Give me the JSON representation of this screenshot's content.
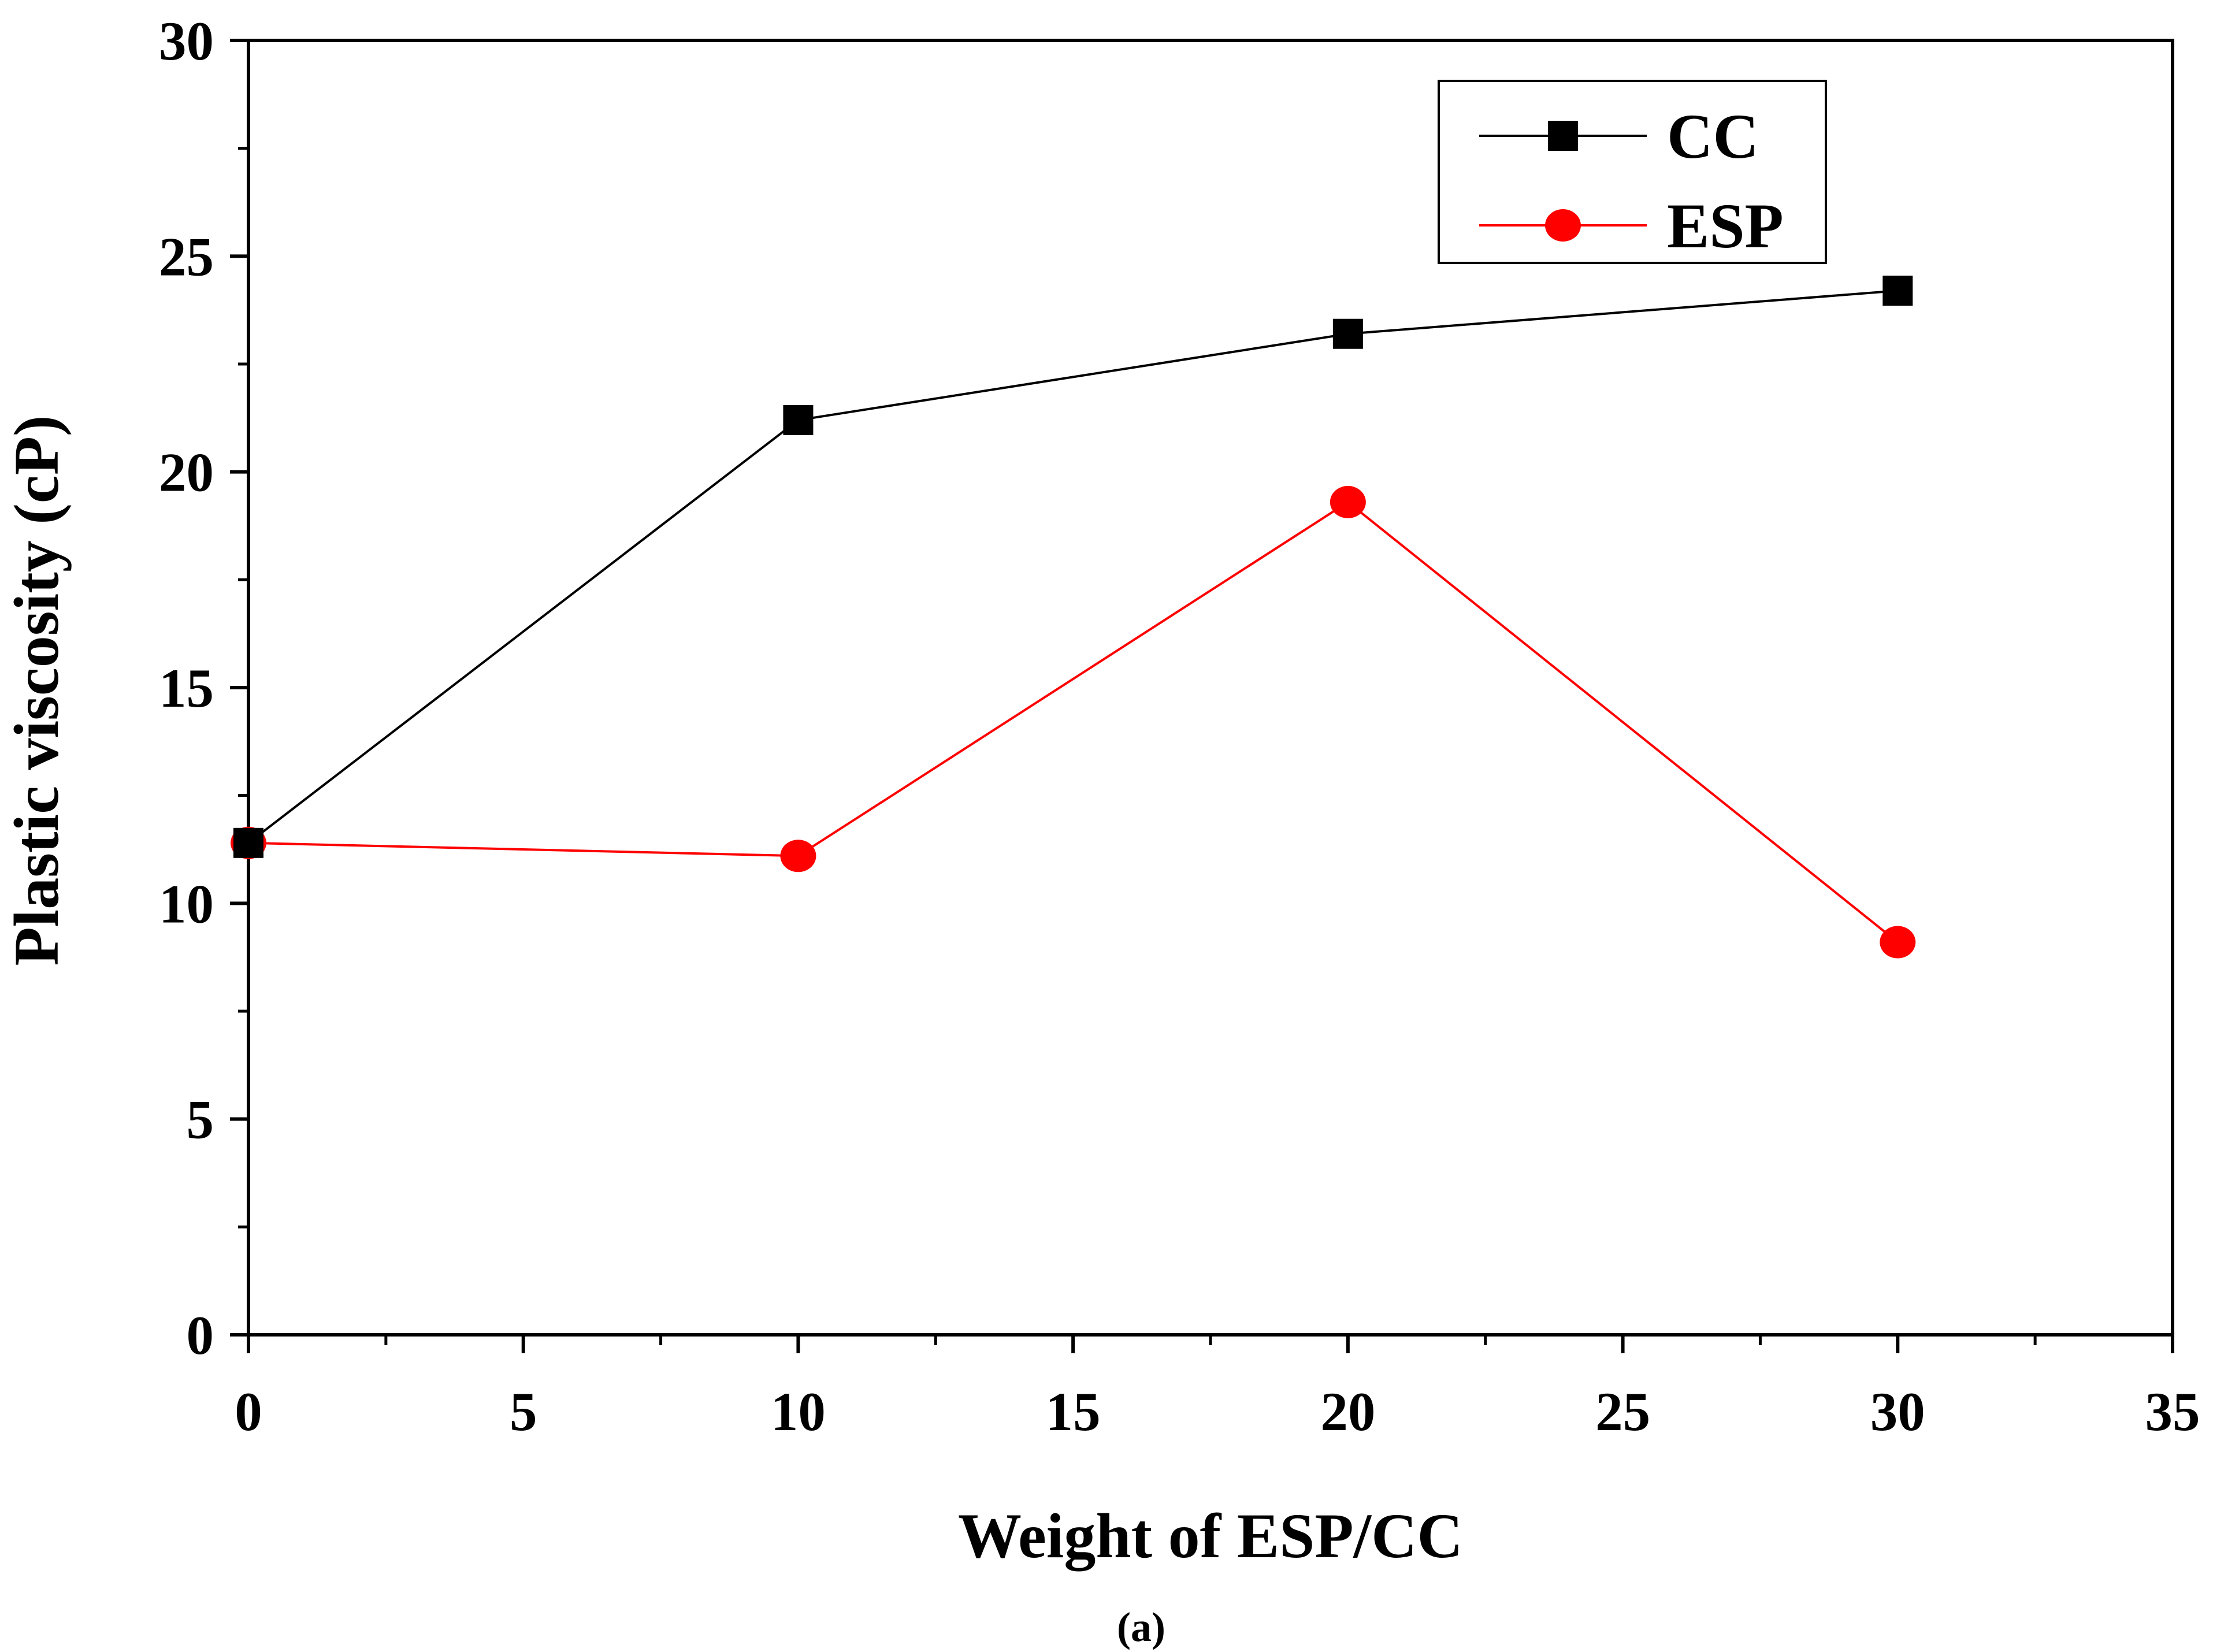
{
  "chart_data": {
    "type": "line",
    "title": "",
    "xlabel": "Weight of ESP/CC",
    "ylabel": "Plastic viscosity (cP)",
    "caption": "(a)",
    "xlim": [
      0,
      35
    ],
    "ylim": [
      0,
      30
    ],
    "xticks": [
      0,
      5,
      10,
      15,
      20,
      25,
      30,
      35
    ],
    "yticks": [
      0,
      5,
      10,
      15,
      20,
      25,
      30
    ],
    "grid": false,
    "legend_position": "top-right",
    "series": [
      {
        "name": "CC",
        "color": "#000000",
        "marker": "square",
        "x": [
          0,
          10,
          20,
          30
        ],
        "values": [
          11.4,
          21.2,
          23.2,
          24.2
        ]
      },
      {
        "name": "ESP",
        "color": "#ff0000",
        "marker": "circle",
        "x": [
          0,
          10,
          20,
          30
        ],
        "values": [
          11.4,
          11.1,
          19.3,
          9.1
        ]
      }
    ]
  }
}
